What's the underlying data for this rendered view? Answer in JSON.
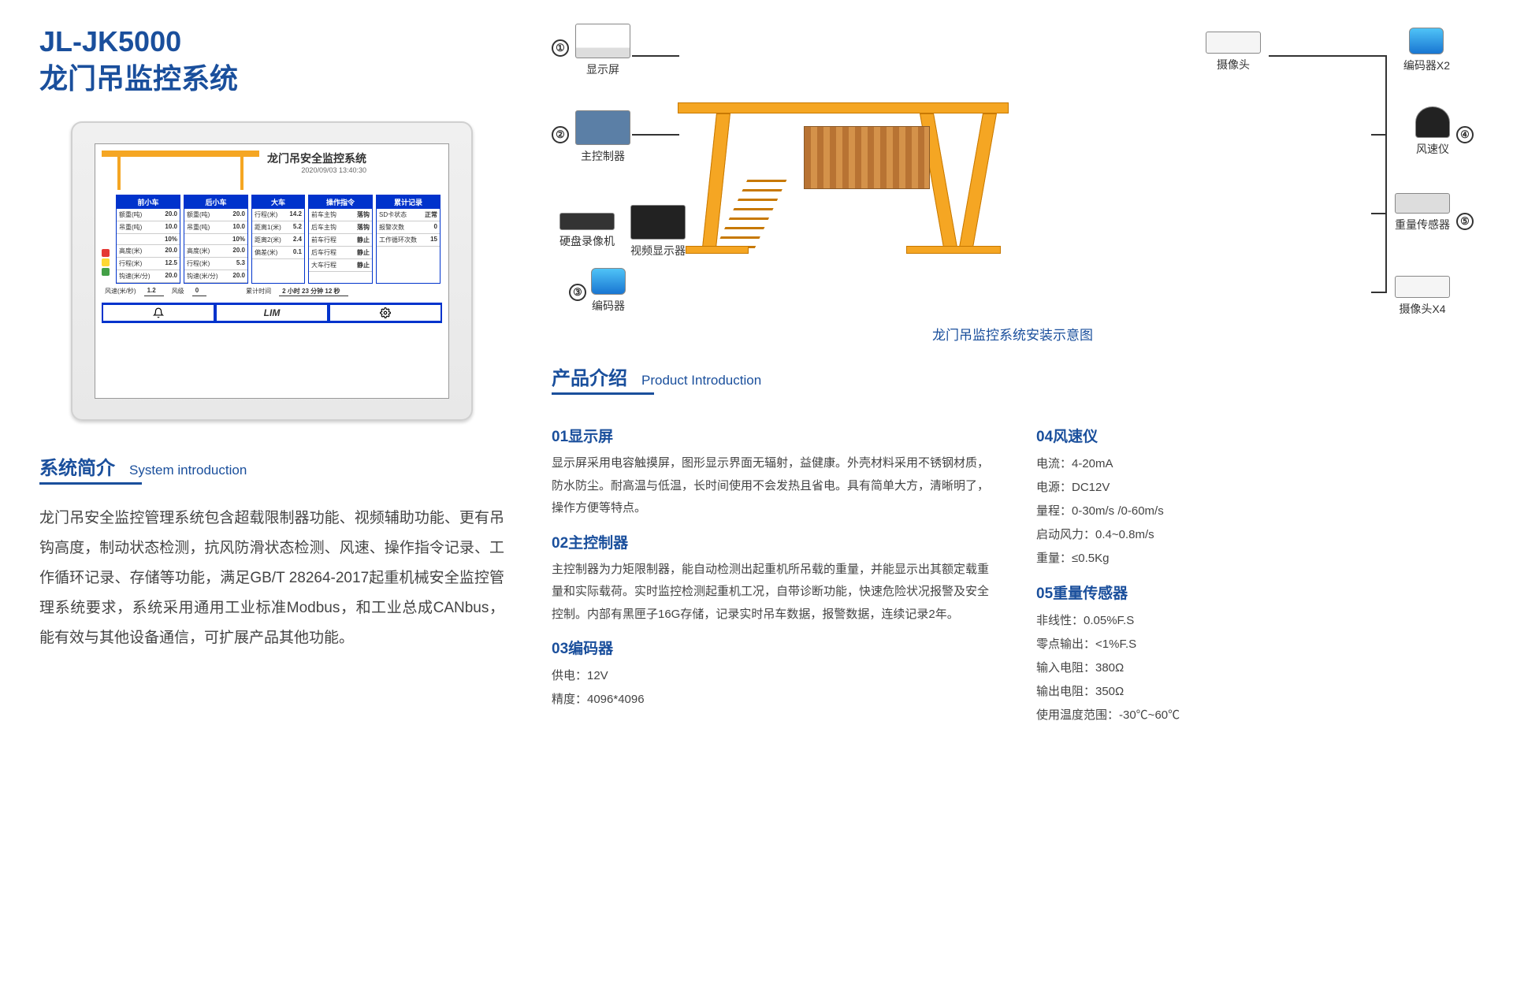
{
  "colors": {
    "primary": "#1a4f9c",
    "accent": "#f5a623",
    "text": "#333333",
    "body": "#444444",
    "panel_blue": "#0033cc"
  },
  "title": {
    "model": "JL-JK5000",
    "name": "龙门吊监控系统"
  },
  "screen": {
    "title": "龙门吊安全监控系统",
    "datetime": "2020/09/03 13:40:30",
    "panels": [
      {
        "header": "前小车",
        "rows": [
          [
            "额重(吨)",
            "20.0"
          ],
          [
            "吊重(吨)",
            "10.0"
          ],
          [
            "",
            "10%"
          ],
          [
            "高度(米)",
            "20.0"
          ],
          [
            "行程(米)",
            "12.5"
          ],
          [
            "钩速(米/分)",
            "20.0"
          ]
        ]
      },
      {
        "header": "后小车",
        "rows": [
          [
            "额重(吨)",
            "20.0"
          ],
          [
            "吊重(吨)",
            "10.0"
          ],
          [
            "",
            "10%"
          ],
          [
            "高度(米)",
            "20.0"
          ],
          [
            "行程(米)",
            "5.3"
          ],
          [
            "钩速(米/分)",
            "20.0"
          ]
        ]
      },
      {
        "header": "大车",
        "rows": [
          [
            "行程(米)",
            "14.2"
          ],
          [
            "距离1(米)",
            "5.2"
          ],
          [
            "距离2(米)",
            "2.4"
          ],
          [
            "偏差(米)",
            "0.1"
          ]
        ]
      },
      {
        "header": "操作指令",
        "rows": [
          [
            "前车主钩",
            "落钩"
          ],
          [
            "后车主钩",
            "落钩"
          ],
          [
            "前车行程",
            "静止"
          ],
          [
            "后车行程",
            "静止"
          ],
          [
            "大车行程",
            "静止"
          ]
        ]
      },
      {
        "header": "累计记录",
        "rows": [
          [
            "SD卡状态",
            "正常"
          ],
          [
            "报警次数",
            "0"
          ],
          [
            "工作循环次数",
            "15"
          ]
        ]
      }
    ],
    "wind_speed_label": "风速(米/秒)",
    "wind_speed": "1.2",
    "wind_level_label": "风级",
    "wind_level": "0",
    "time_label": "累计时间",
    "time_value": "2 小时 23 分钟 12 秒",
    "lim_label": "LIM"
  },
  "system_intro": {
    "heading_zh": "系统简介",
    "heading_en": "System introduction",
    "text": "龙门吊安全监控管理系统包含超载限制器功能、视频辅助功能、更有吊钩高度，制动状态检测，抗风防滑状态检测、风速、操作指令记录、工作循环记录、存储等功能，满足GB/T 28264-2017起重机械安全监控管理系统要求，系统采用通用工业标准Modbus，和工业总成CANbus，能有效与其他设备通信，可扩展产品其他功能。"
  },
  "diagram": {
    "caption": "龙门吊监控系统安装示意图",
    "components": {
      "display": "显示屏",
      "controller": "主控制器",
      "dvr": "硬盘录像机",
      "monitor": "视频显示器",
      "encoder": "编码器",
      "camera": "摄像头",
      "encoder_x2": "编码器X2",
      "anemometer": "风速仪",
      "weight_sensor": "重量传感器",
      "camera_x4": "摄像头X4"
    },
    "numbers": [
      "①",
      "②",
      "③",
      "④",
      "⑤"
    ]
  },
  "product_intro": {
    "heading_zh": "产品介绍",
    "heading_en": "Product Introduction",
    "sections": [
      {
        "num": "01",
        "title": "显示屏",
        "text": "显示屏采用电容触摸屏，图形显示界面无辐射，益健康。外壳材料采用不锈钢材质，防水防尘。耐高温与低温，长时间使用不会发热且省电。具有简单大方，清晰明了，操作方便等特点。"
      },
      {
        "num": "02",
        "title": "主控制器",
        "text": "主控制器为力矩限制器，能自动检测出起重机所吊载的重量，并能显示出其额定载重量和实际载荷。实时监控检测起重机工况，自带诊断功能，快速危险状况报警及安全控制。内部有黑匣子16G存储，记录实时吊车数据，报警数据，连续记录2年。"
      },
      {
        "num": "03",
        "title": "编码器",
        "specs": [
          "供电：12V",
          "精度：4096*4096"
        ]
      },
      {
        "num": "04",
        "title": "风速仪",
        "specs": [
          "电流：4-20mA",
          "电源：DC12V",
          "量程：0-30m/s /0-60m/s",
          "启动风力：0.4~0.8m/s",
          "重量：≤0.5Kg"
        ]
      },
      {
        "num": "05",
        "title": "重量传感器",
        "specs": [
          "非线性：0.05%F.S",
          "零点输出：<1%F.S",
          "输入电阻：380Ω",
          "输出电阻：350Ω",
          "使用温度范围：-30℃~60℃"
        ]
      }
    ]
  }
}
